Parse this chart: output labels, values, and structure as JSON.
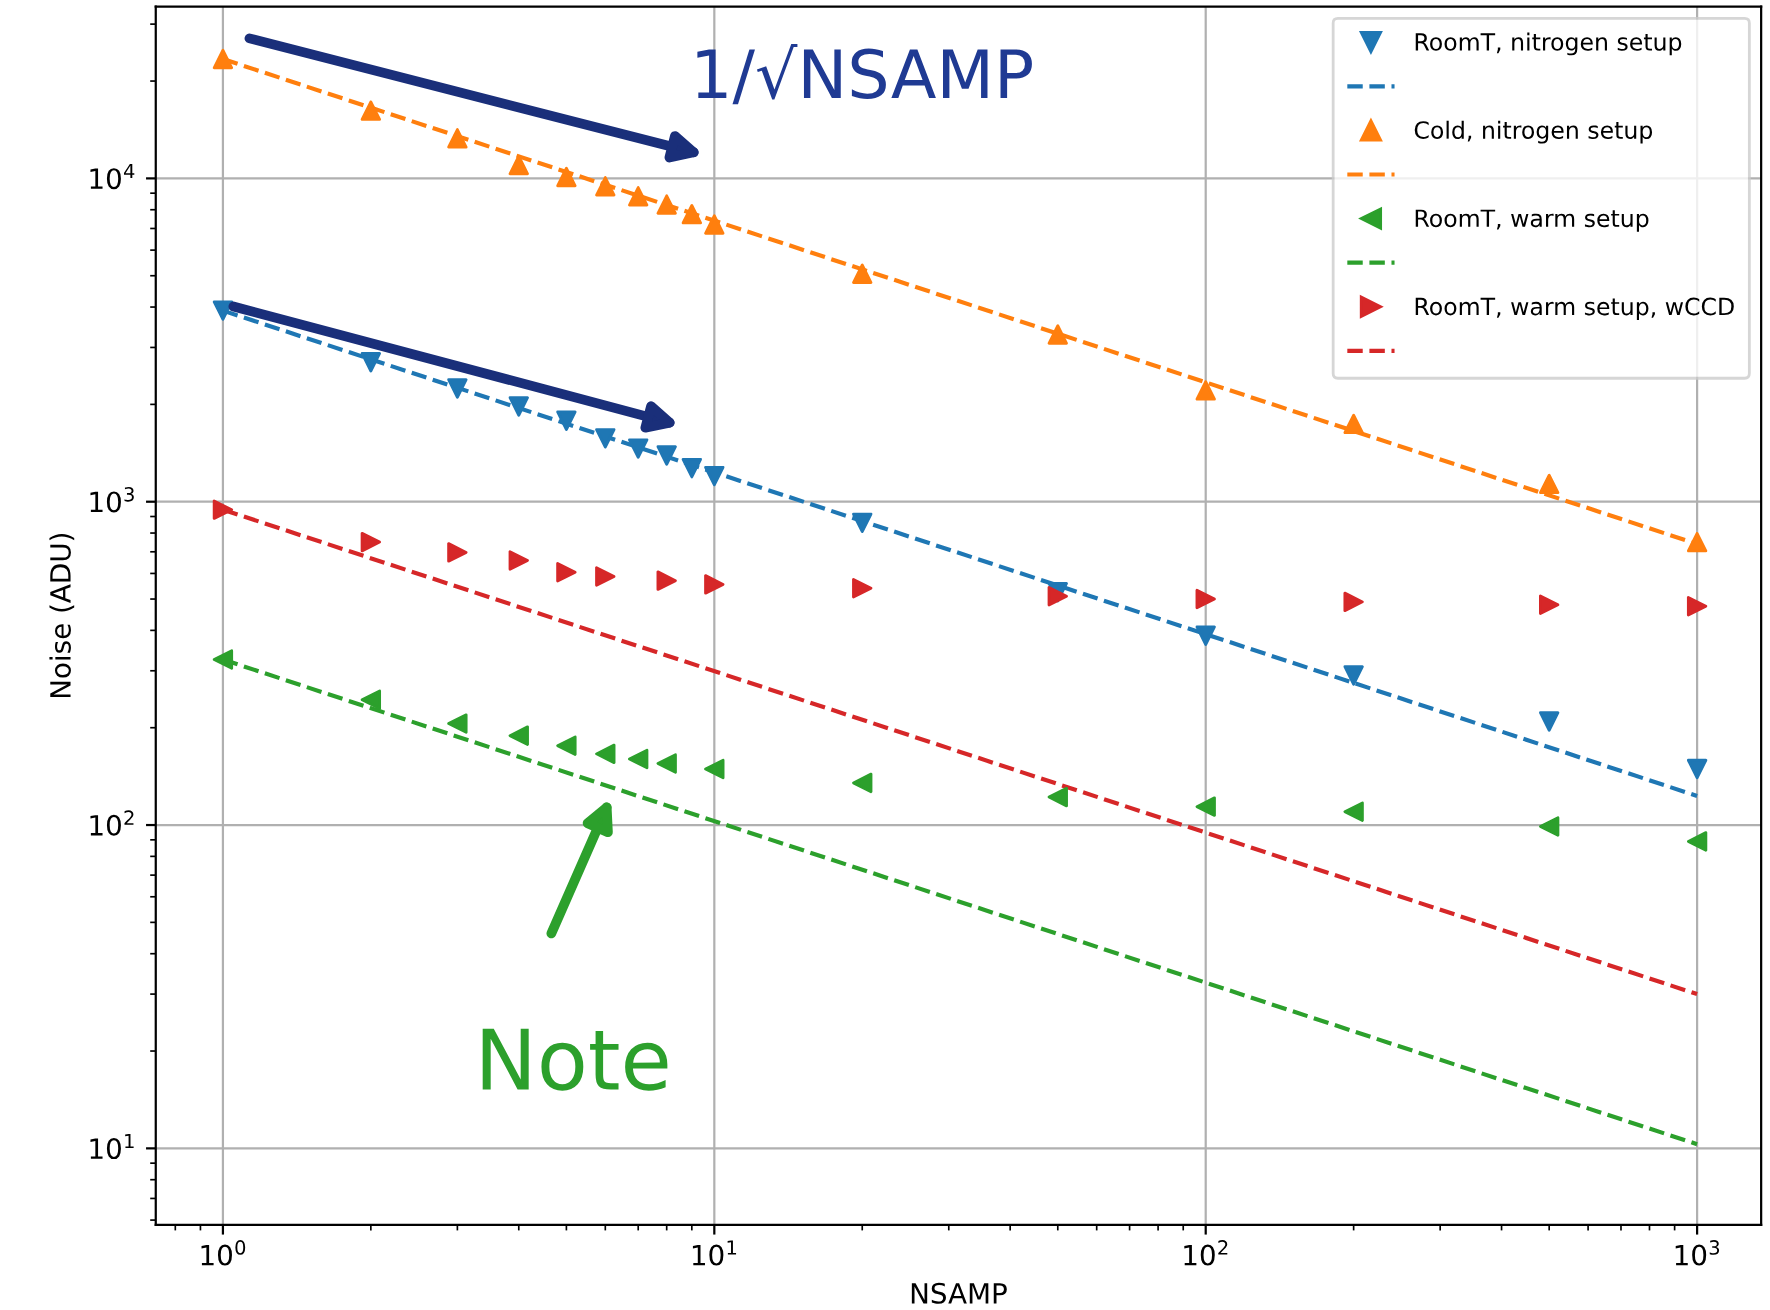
{
  "chart_data": {
    "type": "scatter",
    "xlabel": "NSAMP",
    "ylabel": "Noise (ADU)",
    "log": "xy",
    "grid": true,
    "legend": "top right",
    "xlim": [
      0.73,
      1350
    ],
    "ylim": [
      5.8,
      34000
    ],
    "xticks": [
      {
        "value": 1,
        "label": "10$^{0}$"
      },
      {
        "value": 10,
        "label": "10$^{1}$"
      },
      {
        "value": 100,
        "label": "10$^{2}$"
      },
      {
        "value": 1000,
        "label": "10$^{3}$"
      }
    ],
    "yticks": [
      {
        "value": 10,
        "label": "10$^{1}$"
      },
      {
        "value": 100,
        "label": "10$^{2}$"
      },
      {
        "value": 1000,
        "label": "10$^{3}$"
      },
      {
        "value": 10000,
        "label": "10$^{4}$"
      }
    ],
    "series": [
      {
        "name": "RoomT, nitrogen setup",
        "color": "#1f77b4",
        "marker": "triangle_down",
        "x": [
          1,
          2,
          3,
          4,
          5,
          6,
          7,
          8,
          9,
          10,
          20,
          50,
          100,
          200,
          500,
          1000
        ],
        "values": [
          3900,
          2700,
          2240,
          1970,
          1780,
          1570,
          1460,
          1390,
          1270,
          1200,
          860,
          525,
          385,
          290,
          209,
          149
        ]
      },
      {
        "type": "line",
        "line_style": "dashed",
        "color": "#1f77b4",
        "x": [
          1,
          1000
        ],
        "values": [
          3900,
          123
        ]
      },
      {
        "name": "Cold, nitrogen setup",
        "color": "#ff7f0e",
        "marker": "triangle_up",
        "x": [
          1,
          2,
          3,
          4,
          5,
          6,
          7,
          8,
          9,
          10,
          20,
          50,
          100,
          200,
          500,
          1000
        ],
        "values": [
          23400,
          16200,
          13300,
          11000,
          10100,
          9450,
          8800,
          8300,
          7750,
          7200,
          5070,
          3290,
          2210,
          1740,
          1135,
          750
        ]
      },
      {
        "type": "line",
        "line_style": "dashed",
        "color": "#ff7f0e",
        "x": [
          1,
          1000
        ],
        "values": [
          23400,
          740
        ]
      },
      {
        "name": "RoomT, warm setup",
        "color": "#2ca02c",
        "marker": "triangle_left",
        "x": [
          1,
          2,
          3,
          4,
          5,
          6,
          7,
          8,
          10,
          20,
          50,
          100,
          200,
          500,
          1000
        ],
        "values": [
          325,
          244,
          206,
          189,
          176,
          166,
          160,
          155,
          149,
          135,
          122,
          114,
          110,
          99,
          89
        ]
      },
      {
        "type": "line",
        "line_style": "dashed",
        "color": "#2ca02c",
        "x": [
          1,
          1000
        ],
        "values": [
          325,
          10.3
        ]
      },
      {
        "name": "RoomT, warm setup, wCCD",
        "color": "#d62728",
        "marker": "triangle_right",
        "x": [
          1,
          2,
          3,
          4,
          5,
          6,
          8,
          10,
          20,
          50,
          100,
          200,
          500,
          1000
        ],
        "values": [
          945,
          750,
          697,
          658,
          605,
          587,
          570,
          555,
          540,
          510,
          500,
          490,
          480,
          475
        ]
      },
      {
        "type": "line",
        "line_style": "dashed",
        "color": "#d62728",
        "x": [
          1,
          1000
        ],
        "values": [
          945,
          30
        ]
      }
    ],
    "annotations": [
      "1/√NSAMP",
      "Note"
    ]
  }
}
